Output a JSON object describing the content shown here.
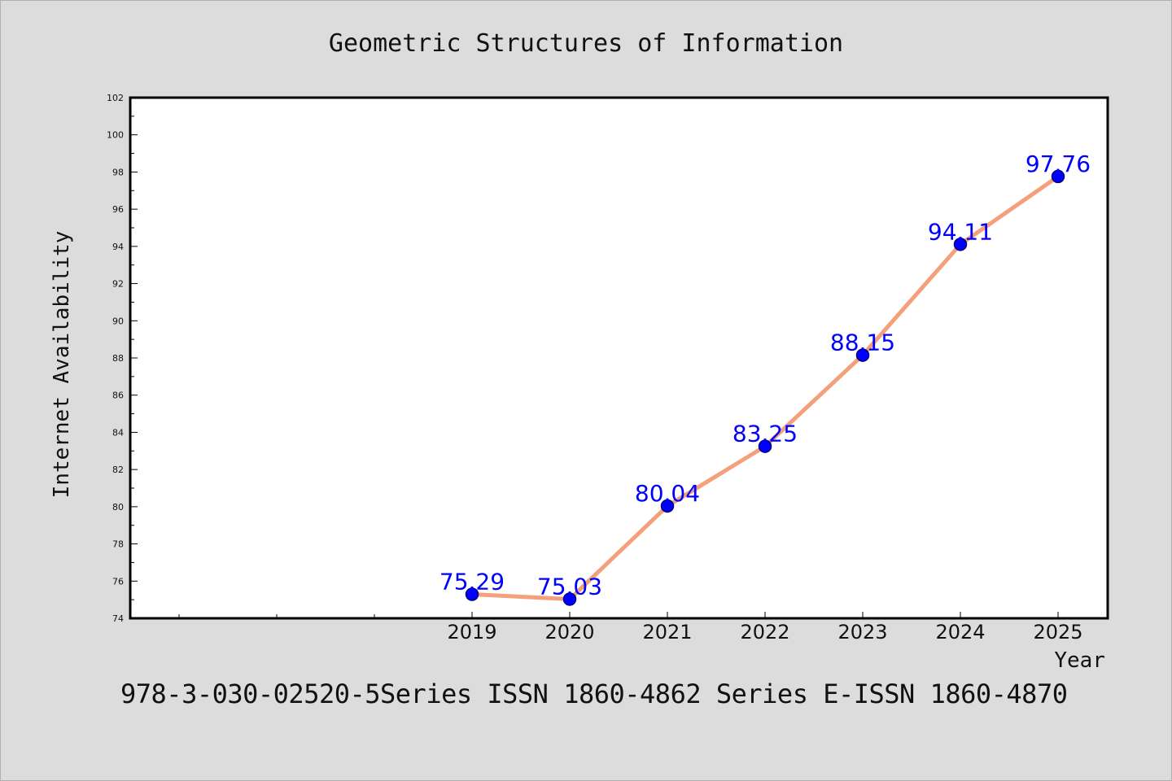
{
  "chart_data": {
    "type": "line",
    "title": "Geometric Structures of Information",
    "xlabel": "Year",
    "ylabel": "Internet Availability",
    "categories": [
      "2019",
      "2020",
      "2021",
      "2022",
      "2023",
      "2024",
      "2025"
    ],
    "series": [
      {
        "values": [
          75.29,
          75.03,
          80.04,
          83.25,
          88.15,
          94.11,
          97.76
        ]
      }
    ],
    "data_labels": [
      "75.29",
      "75.03",
      "80.04",
      "83.25",
      "88.15",
      "94.11",
      "97.76"
    ],
    "ylim": [
      74,
      102
    ],
    "yticks": [
      74,
      76,
      78,
      80,
      82,
      84,
      86,
      88,
      90,
      92,
      94,
      96,
      98,
      100,
      102
    ],
    "grid": false,
    "colors": {
      "line": "#f4a07a",
      "marker": "#0000ff",
      "marker_edge": "#000080",
      "data_label": "#0000ff",
      "plot_bg": "#ffffff",
      "figure_bg": "#dcdcdc"
    }
  },
  "footer": {
    "text": "978-3-030-02520-5Series ISSN 1860-4862 Series E-ISSN 1860-4870"
  }
}
